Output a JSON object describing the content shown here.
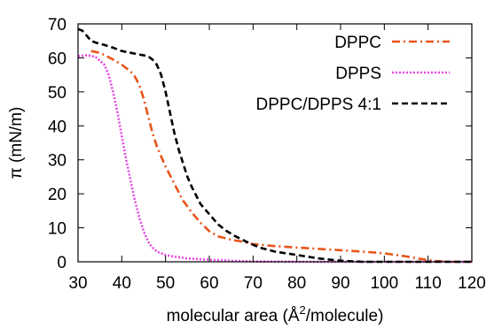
{
  "chart_data": {
    "type": "line",
    "xlabel_pre": "molecular area (Å",
    "xlabel_sup": "2",
    "xlabel_post": "/molecule)",
    "ylabel": "π (mN/m)",
    "xlim": [
      30,
      120
    ],
    "ylim": [
      0,
      70
    ],
    "xticks": [
      30,
      40,
      50,
      60,
      70,
      80,
      90,
      100,
      110,
      120
    ],
    "yticks": [
      0,
      10,
      20,
      30,
      40,
      50,
      60,
      70
    ],
    "grid": false,
    "legend_position": "top-right",
    "baseline": {
      "y": 0,
      "color": "#888888"
    },
    "series": [
      {
        "name": "DPPC",
        "color": "#e8541a",
        "dash": "dash-dot",
        "x": [
          33,
          35,
          38,
          40,
          42,
          43,
          44,
          45,
          46,
          47,
          48,
          49,
          50,
          52,
          54,
          56,
          58,
          60,
          62,
          65,
          68,
          70,
          75,
          80,
          85,
          90,
          95,
          100,
          105,
          108,
          110,
          112,
          115,
          120
        ],
        "y": [
          62,
          61.5,
          59.5,
          58,
          56,
          54.5,
          52,
          48,
          43,
          38,
          34,
          31,
          28,
          23,
          18,
          14.5,
          11.5,
          9,
          7.5,
          6.5,
          5.8,
          5.2,
          4.6,
          4.2,
          3.8,
          3.4,
          3,
          2.5,
          1.6,
          0.9,
          0.5,
          0.2,
          0,
          0
        ]
      },
      {
        "name": "DPPS",
        "color": "#e646e6",
        "dash": "dotted",
        "x": [
          30,
          32,
          34,
          36,
          37,
          38,
          39,
          40,
          41,
          42,
          43,
          44,
          45,
          46,
          47,
          48,
          50,
          52,
          55,
          60,
          65,
          70,
          80,
          90,
          120
        ],
        "y": [
          60.5,
          60.8,
          60.3,
          58,
          55,
          50,
          44,
          37,
          30,
          24,
          18,
          13,
          9,
          6,
          4.2,
          3,
          2,
          1.5,
          1,
          0.6,
          0.3,
          0.1,
          0,
          0,
          0
        ]
      },
      {
        "name": "DPPC/DPPS 4:1",
        "color": "#000000",
        "dash": "dashed",
        "x": [
          30,
          31,
          32,
          33,
          34,
          36,
          38,
          40,
          42,
          44,
          46,
          47,
          48,
          49,
          50,
          51,
          52,
          53,
          54,
          55,
          56,
          58,
          60,
          62,
          64,
          66,
          68,
          70,
          72,
          75,
          80,
          85,
          90,
          95,
          100,
          120
        ],
        "y": [
          68.5,
          68,
          66.5,
          65,
          64.5,
          63.8,
          63,
          62,
          61.5,
          61,
          60.5,
          59.5,
          58,
          55,
          50,
          44,
          38,
          33,
          29,
          25,
          22,
          17,
          14,
          11,
          9,
          7.5,
          6.2,
          5,
          4,
          3,
          2,
          1,
          0.3,
          0,
          0,
          0
        ]
      }
    ]
  }
}
